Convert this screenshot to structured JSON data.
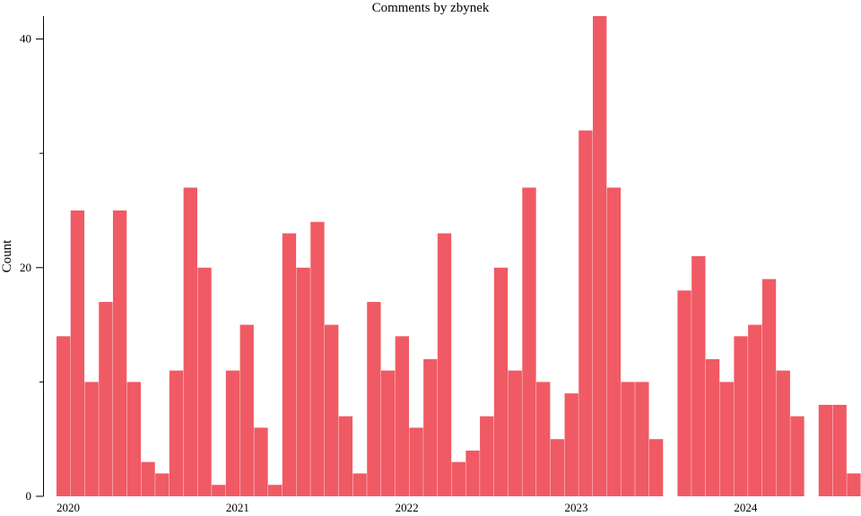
{
  "chart_data": {
    "type": "bar",
    "title": "Comments by zbynek",
    "xlabel": "",
    "ylabel": "Count",
    "bar_color": "#f05a64",
    "ylim": [
      0,
      42
    ],
    "yticks": [
      0,
      20,
      40
    ],
    "x_tick_labels": [
      "2020",
      "2021",
      "2022",
      "2023",
      "2024"
    ],
    "grid": false,
    "start_month": "2020-01",
    "values": [
      14,
      25,
      10,
      17,
      25,
      10,
      3,
      2,
      11,
      27,
      20,
      1,
      11,
      15,
      6,
      1,
      23,
      20,
      24,
      15,
      7,
      2,
      17,
      11,
      14,
      6,
      12,
      23,
      3,
      4,
      7,
      20,
      11,
      27,
      10,
      5,
      9,
      32,
      42,
      27,
      10,
      10,
      5,
      0,
      18,
      21,
      12,
      10,
      14,
      15,
      19,
      11,
      7,
      0,
      8,
      8,
      2
    ]
  }
}
